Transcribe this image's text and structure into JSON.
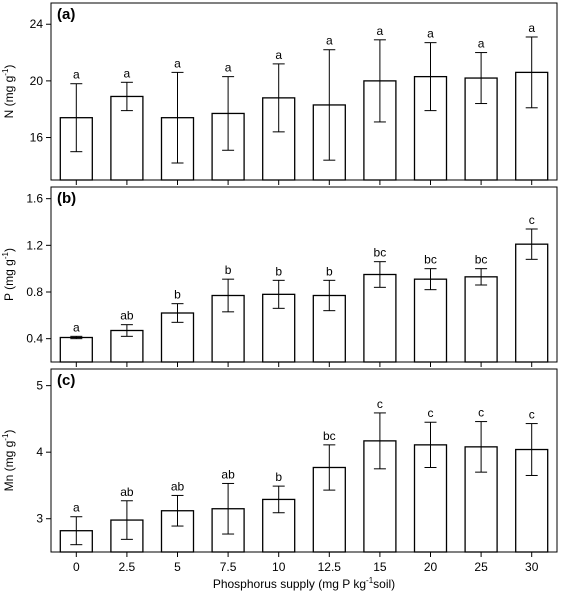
{
  "chart_data": [
    {
      "type": "bar",
      "panel_label": "(a)",
      "ylabel": "N (mg g-1)",
      "ylabel_main": "N (mg g",
      "ylabel_sup": "-1",
      "ylabel_end": ")",
      "ylim": [
        13,
        25.5
      ],
      "yticks": [
        16,
        20,
        24
      ],
      "show_x_tick_labels": false,
      "categories": [
        "0",
        "2.5",
        "5",
        "7.5",
        "10",
        "12.5",
        "15",
        "20",
        "25",
        "30"
      ],
      "values": [
        17.4,
        18.9,
        17.4,
        17.7,
        18.8,
        18.3,
        20.0,
        20.3,
        20.2,
        20.6
      ],
      "errors": [
        2.4,
        1.0,
        3.2,
        2.6,
        2.4,
        3.9,
        2.9,
        2.4,
        1.8,
        2.5
      ],
      "letters": [
        "a",
        "a",
        "a",
        "a",
        "a",
        "a",
        "a",
        "a",
        "a",
        "a"
      ]
    },
    {
      "type": "bar",
      "panel_label": "(b)",
      "ylabel": "P (mg g-1)",
      "ylabel_main": "P (mg g",
      "ylabel_sup": "-1",
      "ylabel_end": ")",
      "ylim": [
        0.2,
        1.7
      ],
      "yticks": [
        0.4,
        0.8,
        1.2,
        1.6
      ],
      "show_x_tick_labels": false,
      "categories": [
        "0",
        "2.5",
        "5",
        "7.5",
        "10",
        "12.5",
        "15",
        "20",
        "25",
        "30"
      ],
      "values": [
        0.41,
        0.47,
        0.62,
        0.77,
        0.78,
        0.77,
        0.95,
        0.91,
        0.93,
        1.21
      ],
      "errors": [
        0.01,
        0.05,
        0.08,
        0.14,
        0.12,
        0.13,
        0.11,
        0.09,
        0.07,
        0.13
      ],
      "letters": [
        "a",
        "ab",
        "b",
        "b",
        "b",
        "b",
        "bc",
        "bc",
        "bc",
        "c"
      ]
    },
    {
      "type": "bar",
      "panel_label": "(c)",
      "ylabel": "Mn (mg g-1)",
      "ylabel_main": "Mn (mg g",
      "ylabel_sup": "-1",
      "ylabel_end": ")",
      "ylim": [
        2.5,
        5.25
      ],
      "yticks": [
        3,
        4,
        5
      ],
      "show_x_tick_labels": true,
      "categories": [
        "0",
        "2.5",
        "5",
        "7.5",
        "10",
        "12.5",
        "15",
        "20",
        "25",
        "30"
      ],
      "values": [
        2.82,
        2.98,
        3.12,
        3.15,
        3.29,
        3.77,
        4.17,
        4.11,
        4.08,
        4.04
      ],
      "errors": [
        0.21,
        0.29,
        0.23,
        0.38,
        0.2,
        0.34,
        0.42,
        0.34,
        0.38,
        0.39
      ],
      "letters": [
        "a",
        "ab",
        "ab",
        "ab",
        "b",
        "bc",
        "c",
        "c",
        "c",
        "c"
      ],
      "xlabel": "Phosphorus supply (mg P kg-1soil)",
      "xlabel_main": "Phosphorus supply (mg P kg",
      "xlabel_sup": "-1",
      "xlabel_end": "soil)"
    }
  ]
}
